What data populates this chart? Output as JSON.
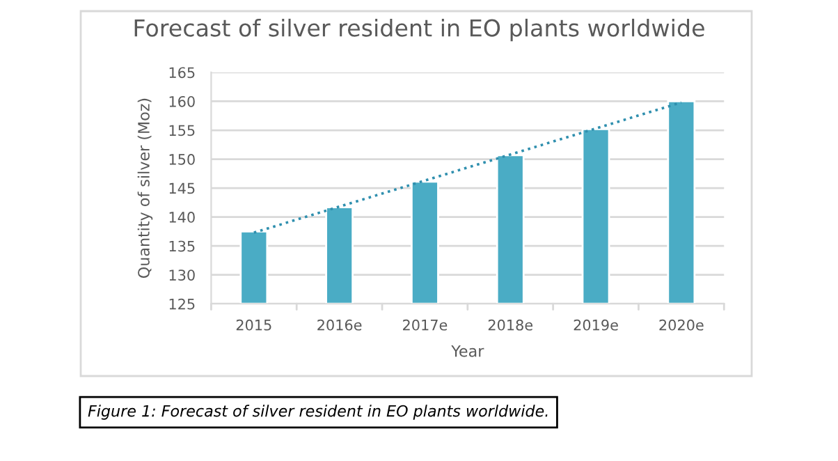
{
  "chart_data": {
    "type": "bar",
    "title": "Forecast of silver resident in EO plants worldwide",
    "xlabel": "Year",
    "ylabel": "Quantity of silver (Moz)",
    "categories": [
      "2015",
      "2016e",
      "2017e",
      "2018e",
      "2019e",
      "2020e"
    ],
    "series": [
      {
        "color": "#4aacc5",
        "values": [
          137.5,
          141.7,
          146.1,
          150.7,
          155.2,
          160.0
        ]
      },
      {
        "type": "line",
        "color": "#2f8fae",
        "line_style": "dotted",
        "values": [
          137.3,
          141.8,
          146.3,
          150.8,
          155.3,
          159.8
        ]
      }
    ],
    "ylim": [
      125,
      165
    ],
    "yticks": [
      125,
      130,
      135,
      140,
      145,
      150,
      155,
      160,
      165
    ],
    "grid": "y",
    "annotations": [
      "Figure 1: Forecast of silver resident in EO plants worldwide."
    ]
  }
}
